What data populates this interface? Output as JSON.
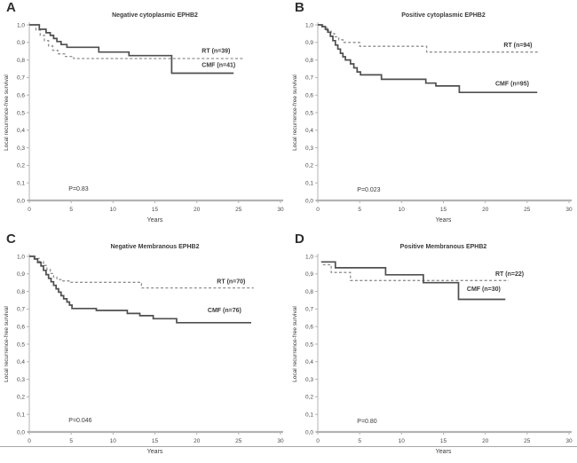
{
  "figure": {
    "background": "#ffffff",
    "colors": {
      "solid_curve": "#4f4f4f",
      "dashed_curve": "#8f8f8f",
      "axis": "#b3b3b3",
      "text": "#3a3a3a",
      "tick_text": "#4a4a4a",
      "rule": "#a8a8a8"
    },
    "axis": {
      "xlabel": "Years",
      "ylabel": "Local recurrence-free survival",
      "xlim": [
        0,
        30
      ],
      "ylim": [
        0,
        1
      ],
      "x_ticks": [
        0,
        5,
        10,
        15,
        20,
        25,
        30
      ],
      "x_tick_labels": [
        "0",
        "5",
        "10",
        "15",
        "20",
        "25",
        "30"
      ],
      "y_ticks": [
        1.0,
        0.9,
        0.8,
        0.7,
        0.6,
        0.5,
        0.4,
        0.3,
        0.2,
        0.1,
        0.0
      ],
      "y_tick_labels": [
        "1,0",
        "0,9",
        "0,8",
        "0,7",
        "0,6",
        "0,5",
        "0,4",
        "0,3",
        "0,2",
        "0,1",
        "0,0"
      ],
      "grid": false
    }
  },
  "chart_data": [
    {
      "type": "line",
      "panel": "A",
      "title": "Negative cytoplasmic EPHB2",
      "p_label": "P=0.83",
      "p_pos": [
        4.7,
        0.055
      ],
      "series": [
        {
          "name": "RT (n=39)",
          "style": "dashed",
          "points": [
            [
              0,
              1.0
            ],
            [
              0.8,
              0.97
            ],
            [
              1.3,
              0.94
            ],
            [
              1.8,
              0.91
            ],
            [
              2.3,
              0.88
            ],
            [
              2.8,
              0.855
            ],
            [
              3.4,
              0.835
            ],
            [
              4.3,
              0.82
            ],
            [
              5.3,
              0.808
            ]
          ],
          "end": 25.5,
          "label_pos": [
            20.6,
            0.842
          ]
        },
        {
          "name": "CMF (n=41)",
          "style": "solid",
          "points": [
            [
              0,
              1.0
            ],
            [
              1.2,
              0.975
            ],
            [
              2.0,
              0.955
            ],
            [
              2.5,
              0.94
            ],
            [
              2.9,
              0.922
            ],
            [
              3.3,
              0.905
            ],
            [
              3.8,
              0.888
            ],
            [
              4.5,
              0.872
            ],
            [
              8.3,
              0.845
            ],
            [
              11.9,
              0.825
            ],
            [
              17.0,
              0.725
            ]
          ],
          "end": 24.4,
          "label_pos": [
            20.6,
            0.76
          ]
        }
      ]
    },
    {
      "type": "line",
      "panel": "B",
      "title": "Positive cytoplasmic EPHB2",
      "p_label": "P=0.023",
      "p_pos": [
        4.7,
        0.05
      ],
      "series": [
        {
          "name": "RT (n=94)",
          "style": "dashed",
          "points": [
            [
              0,
              1.0
            ],
            [
              0.6,
              0.985
            ],
            [
              1.1,
              0.968
            ],
            [
              1.6,
              0.95
            ],
            [
              2.0,
              0.932
            ],
            [
              2.5,
              0.915
            ],
            [
              3.0,
              0.9
            ],
            [
              5.0,
              0.878
            ],
            [
              13.0,
              0.845
            ]
          ],
          "end": 26.4,
          "label_pos": [
            22.2,
            0.873
          ]
        },
        {
          "name": "CMF (n=95)",
          "style": "solid",
          "points": [
            [
              0,
              1.0
            ],
            [
              0.5,
              0.99
            ],
            [
              0.9,
              0.975
            ],
            [
              1.2,
              0.958
            ],
            [
              1.5,
              0.935
            ],
            [
              1.8,
              0.91
            ],
            [
              2.1,
              0.885
            ],
            [
              2.4,
              0.862
            ],
            [
              2.7,
              0.838
            ],
            [
              3.0,
              0.818
            ],
            [
              3.3,
              0.8
            ],
            [
              3.9,
              0.778
            ],
            [
              4.3,
              0.755
            ],
            [
              4.7,
              0.732
            ],
            [
              5.1,
              0.715
            ],
            [
              7.6,
              0.69
            ],
            [
              12.9,
              0.668
            ],
            [
              14.1,
              0.652
            ],
            [
              16.9,
              0.615
            ]
          ],
          "end": 26.2,
          "label_pos": [
            21.2,
            0.653
          ]
        }
      ]
    },
    {
      "type": "line",
      "panel": "C",
      "title": "Negative Membranous EPHB2",
      "p_label": "P=0.046",
      "p_pos": [
        4.7,
        0.055
      ],
      "series": [
        {
          "name": "RT (n=70)",
          "style": "dashed",
          "points": [
            [
              0,
              1.0
            ],
            [
              0.7,
              0.988
            ],
            [
              1.2,
              0.97
            ],
            [
              1.7,
              0.948
            ],
            [
              2.1,
              0.925
            ],
            [
              2.5,
              0.902
            ],
            [
              2.9,
              0.882
            ],
            [
              3.3,
              0.868
            ],
            [
              3.8,
              0.86
            ],
            [
              4.9,
              0.852
            ],
            [
              13.4,
              0.82
            ]
          ],
          "end": 26.8,
          "label_pos": [
            22.4,
            0.845
          ]
        },
        {
          "name": "CMF (n=76)",
          "style": "solid",
          "points": [
            [
              0,
              1.0
            ],
            [
              0.6,
              0.985
            ],
            [
              1.0,
              0.965
            ],
            [
              1.4,
              0.945
            ],
            [
              1.7,
              0.92
            ],
            [
              2.0,
              0.896
            ],
            [
              2.3,
              0.875
            ],
            [
              2.6,
              0.855
            ],
            [
              2.9,
              0.835
            ],
            [
              3.2,
              0.815
            ],
            [
              3.5,
              0.796
            ],
            [
              3.8,
              0.776
            ],
            [
              4.1,
              0.758
            ],
            [
              4.5,
              0.74
            ],
            [
              4.8,
              0.722
            ],
            [
              5.1,
              0.703
            ],
            [
              8.0,
              0.692
            ],
            [
              11.7,
              0.675
            ],
            [
              13.2,
              0.662
            ],
            [
              14.8,
              0.645
            ],
            [
              17.6,
              0.622
            ]
          ],
          "end": 26.5,
          "label_pos": [
            21.3,
            0.683
          ]
        }
      ]
    },
    {
      "type": "line",
      "panel": "D",
      "title": "Positive Membranous EPHB2",
      "p_label": "P=0.80",
      "p_pos": [
        4.7,
        0.05
      ],
      "series": [
        {
          "name": "RT (n=22)",
          "style": "dashed",
          "points": [
            [
              0.6,
              0.952
            ],
            [
              1.6,
              0.908
            ],
            [
              3.9,
              0.862
            ]
          ],
          "end": 22.8,
          "label_pos": [
            21.2,
            0.89
          ]
        },
        {
          "name": "CMF (n=30)",
          "style": "solid",
          "points": [
            [
              0.4,
              0.968
            ],
            [
              2.1,
              0.935
            ],
            [
              8.1,
              0.895
            ],
            [
              12.6,
              0.85
            ],
            [
              16.8,
              0.755
            ]
          ],
          "end": 22.4,
          "label_pos": [
            17.8,
            0.802
          ]
        }
      ]
    }
  ]
}
